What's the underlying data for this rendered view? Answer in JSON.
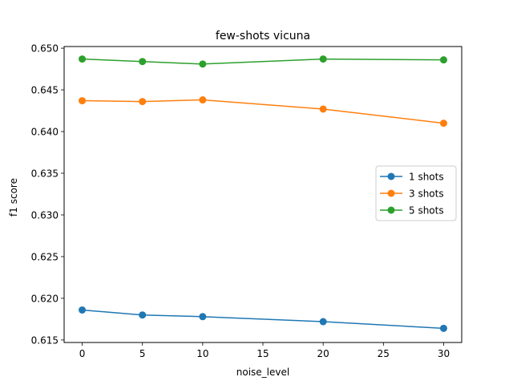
{
  "chart_data": {
    "type": "line",
    "title": "few-shots vicuna",
    "xlabel": "noise_level",
    "ylabel": "f1 score",
    "x": [
      0,
      5,
      10,
      20,
      30
    ],
    "xlim": [
      -1.5,
      31.5
    ],
    "ylim": [
      0.6147,
      0.6502
    ],
    "xticks": [
      0,
      5,
      10,
      15,
      20,
      25,
      30
    ],
    "xtick_labels": [
      "0",
      "5",
      "10",
      "15",
      "20",
      "25",
      "30"
    ],
    "yticks": [
      0.615,
      0.62,
      0.625,
      0.63,
      0.635,
      0.64,
      0.645,
      0.65
    ],
    "ytick_labels": [
      "0.615",
      "0.620",
      "0.625",
      "0.630",
      "0.635",
      "0.640",
      "0.645",
      "0.650"
    ],
    "grid": false,
    "legend_position": "center-right",
    "series": [
      {
        "name": "1 shots",
        "color": "#1f77b4",
        "values": [
          0.6186,
          0.618,
          0.6178,
          0.6172,
          0.6164
        ]
      },
      {
        "name": "3 shots",
        "color": "#ff7f0e",
        "values": [
          0.6437,
          0.6436,
          0.6438,
          0.6427,
          0.641
        ]
      },
      {
        "name": "5 shots",
        "color": "#2ca02c",
        "values": [
          0.6487,
          0.6484,
          0.6481,
          0.6487,
          0.6486
        ]
      }
    ]
  }
}
